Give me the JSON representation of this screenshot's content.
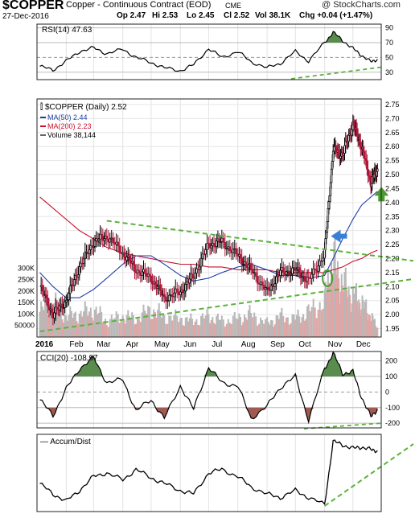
{
  "header": {
    "symbol": "$COPPER",
    "name": "Copper - Continuous Contract (EOD)",
    "exchange": "CME",
    "brand": "@ StockCharts.com",
    "date": "27-Dec-2016",
    "quote": {
      "op": "Op 2.47",
      "hi": "Hi 2.53",
      "lo": "Lo 2.45",
      "cl": "Cl 2.52",
      "vol": "Vol 38.1K",
      "chg": "Chg +0.04 (+1.47%)"
    }
  },
  "colors": {
    "ma50": "#1f3fa8",
    "ma200": "#c8102e",
    "up": "#000000",
    "down": "#b0163a",
    "trend": "#5ab23c",
    "fill_hi": "#5a8c4e",
    "fill_lo": "#a05a52",
    "vol_up": "#b8b8b8",
    "vol_down": "#e2a4a4",
    "arrow_blue": "#3a7fd5",
    "arrow_green": "#4a9a30"
  },
  "chart_data": [
    {
      "panel": "rsi",
      "type": "line",
      "title": "RSI(14)",
      "last_label": "47.63",
      "ylim": [
        20,
        95
      ],
      "y_ticks": [
        "90",
        "70",
        "50",
        "30"
      ],
      "x": [
        "2016-01-04",
        "2016-01-18",
        "2016-02-01",
        "2016-02-15",
        "2016-03-01",
        "2016-03-15",
        "2016-04-01",
        "2016-04-15",
        "2016-05-01",
        "2016-05-15",
        "2016-06-01",
        "2016-06-15",
        "2016-07-01",
        "2016-07-15",
        "2016-08-01",
        "2016-08-15",
        "2016-09-01",
        "2016-09-15",
        "2016-10-01",
        "2016-10-15",
        "2016-11-01",
        "2016-11-10",
        "2016-11-20",
        "2016-12-01",
        "2016-12-10",
        "2016-12-20",
        "2016-12-27"
      ],
      "values": [
        38,
        33,
        45,
        58,
        63,
        55,
        61,
        50,
        43,
        36,
        32,
        40,
        62,
        50,
        58,
        44,
        36,
        42,
        58,
        45,
        70,
        84,
        73,
        62,
        53,
        44,
        47.63
      ],
      "reference_lines": [
        70,
        50,
        30
      ]
    },
    {
      "panel": "price",
      "type": "candlestick",
      "title": "$COPPER (Daily)",
      "last_label": "2.52",
      "legend": [
        {
          "name": "MA(50)",
          "value": "2.44"
        },
        {
          "name": "MA(200)",
          "value": "2.23"
        },
        {
          "name": "Volume",
          "value": "38,144"
        }
      ],
      "ylim": [
        1.92,
        2.77
      ],
      "y_ticks": [
        "2.75",
        "2.70",
        "2.65",
        "2.60",
        "2.55",
        "2.50",
        "2.45",
        "2.40",
        "2.35",
        "2.30",
        "2.25",
        "2.20",
        "2.15",
        "2.10",
        "2.05",
        "2.00",
        "1.95"
      ],
      "volume_ticks": [
        "300K",
        "250K",
        "200K",
        "150K",
        "100K",
        "50000"
      ],
      "volume_max": 340000,
      "x_labels": [
        "2016",
        "Feb",
        "Mar",
        "Apr",
        "May",
        "Jun",
        "Jul",
        "Aug",
        "Sep",
        "Oct",
        "Nov",
        "Dec"
      ],
      "x": [
        "2016-01-04",
        "2016-01-18",
        "2016-02-01",
        "2016-02-15",
        "2016-03-01",
        "2016-03-15",
        "2016-04-01",
        "2016-04-15",
        "2016-05-01",
        "2016-05-15",
        "2016-06-01",
        "2016-06-15",
        "2016-07-01",
        "2016-07-15",
        "2016-08-01",
        "2016-08-15",
        "2016-09-01",
        "2016-09-15",
        "2016-10-01",
        "2016-10-15",
        "2016-11-01",
        "2016-11-10",
        "2016-11-20",
        "2016-12-01",
        "2016-12-10",
        "2016-12-20",
        "2016-12-27"
      ],
      "close": [
        2.1,
        2.0,
        2.05,
        2.17,
        2.26,
        2.28,
        2.22,
        2.16,
        2.13,
        2.06,
        2.08,
        2.14,
        2.25,
        2.26,
        2.21,
        2.16,
        2.08,
        2.15,
        2.16,
        2.12,
        2.22,
        2.59,
        2.57,
        2.68,
        2.6,
        2.47,
        2.52
      ],
      "ma50": [
        2.15,
        2.1,
        2.06,
        2.06,
        2.09,
        2.13,
        2.18,
        2.21,
        2.21,
        2.18,
        2.14,
        2.12,
        2.13,
        2.15,
        2.17,
        2.18,
        2.16,
        2.14,
        2.14,
        2.13,
        2.14,
        2.2,
        2.27,
        2.34,
        2.39,
        2.42,
        2.44
      ],
      "ma200": [
        2.42,
        2.38,
        2.34,
        2.3,
        2.27,
        2.24,
        2.22,
        2.21,
        2.2,
        2.19,
        2.18,
        2.18,
        2.17,
        2.17,
        2.16,
        2.16,
        2.16,
        2.15,
        2.15,
        2.15,
        2.15,
        2.16,
        2.17,
        2.19,
        2.2,
        2.22,
        2.23
      ],
      "volume": [
        110000,
        150000,
        90000,
        100000,
        120000,
        70000,
        90000,
        80000,
        120000,
        90000,
        80000,
        70000,
        90000,
        70000,
        80000,
        100000,
        60000,
        90000,
        80000,
        110000,
        160000,
        330000,
        230000,
        180000,
        150000,
        90000,
        40000
      ],
      "trend_lines": [
        {
          "from": [
            "2016-03-15",
            2.335
          ],
          "to": [
            "2016-12-31",
            2.205
          ]
        },
        {
          "from": [
            "2016-01-04",
            1.94
          ],
          "to": [
            "2016-12-31",
            2.11
          ]
        }
      ]
    },
    {
      "panel": "cci",
      "type": "line",
      "title": "CCI(20)",
      "last_label": "-108.97",
      "ylim": [
        -230,
        260
      ],
      "y_ticks": [
        "200",
        "100",
        "0",
        "-100",
        "-200"
      ],
      "reference_lines": [
        100,
        0,
        -100
      ],
      "x": [
        "2016-01-04",
        "2016-01-18",
        "2016-02-01",
        "2016-02-15",
        "2016-03-01",
        "2016-03-15",
        "2016-04-01",
        "2016-04-15",
        "2016-05-01",
        "2016-05-15",
        "2016-06-01",
        "2016-06-15",
        "2016-07-01",
        "2016-07-15",
        "2016-08-01",
        "2016-08-15",
        "2016-09-01",
        "2016-09-15",
        "2016-10-01",
        "2016-10-15",
        "2016-11-01",
        "2016-11-10",
        "2016-11-20",
        "2016-12-01",
        "2016-12-10",
        "2016-12-20",
        "2016-12-27"
      ],
      "values": [
        -50,
        -150,
        20,
        150,
        220,
        60,
        80,
        -120,
        -50,
        -170,
        40,
        -110,
        160,
        60,
        40,
        -170,
        -90,
        30,
        100,
        -180,
        150,
        250,
        120,
        130,
        -30,
        -160,
        -108.97
      ]
    },
    {
      "panel": "accum_dist",
      "type": "line",
      "title": "Accum/Dist",
      "x": [
        "2016-01-04",
        "2016-01-18",
        "2016-02-01",
        "2016-02-15",
        "2016-03-01",
        "2016-03-15",
        "2016-04-01",
        "2016-04-15",
        "2016-05-01",
        "2016-05-15",
        "2016-06-01",
        "2016-06-15",
        "2016-07-01",
        "2016-07-15",
        "2016-08-01",
        "2016-08-15",
        "2016-09-01",
        "2016-09-15",
        "2016-10-01",
        "2016-10-15",
        "2016-11-01",
        "2016-11-10",
        "2016-11-20",
        "2016-12-01",
        "2016-12-10",
        "2016-12-20",
        "2016-12-27"
      ],
      "values": [
        40,
        25,
        15,
        30,
        50,
        55,
        45,
        60,
        48,
        40,
        30,
        25,
        55,
        60,
        50,
        35,
        25,
        20,
        30,
        20,
        10,
        100,
        95,
        90,
        92,
        88,
        87
      ],
      "ylim": [
        0,
        110
      ],
      "trend_lines": [
        {
          "from": [
            "2016-11-01",
            8
          ],
          "to": [
            "2016-12-31",
            103
          ]
        }
      ]
    }
  ]
}
